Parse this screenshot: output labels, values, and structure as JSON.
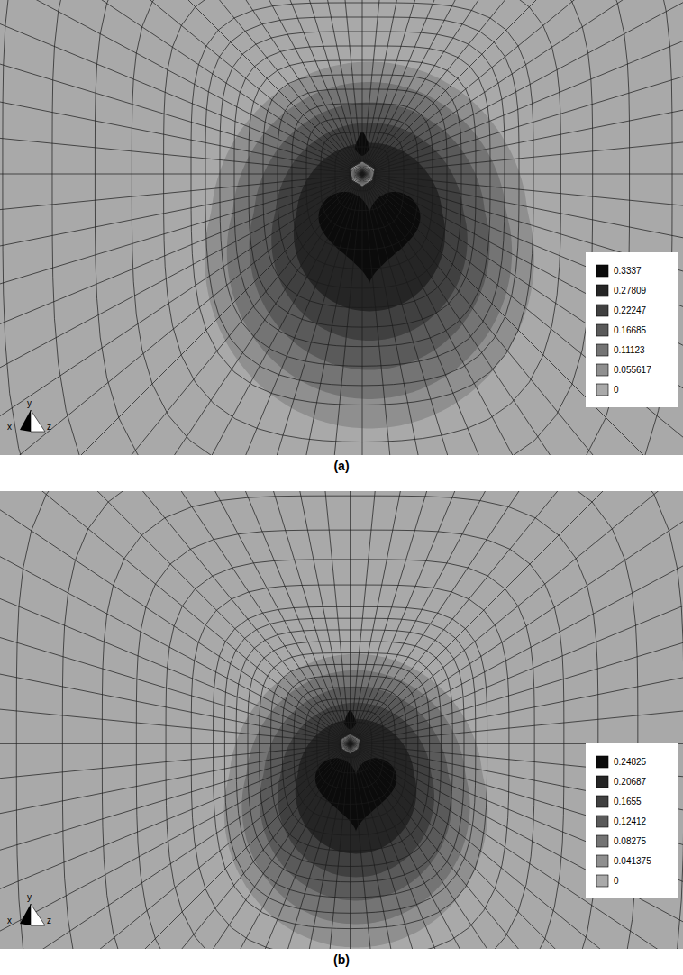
{
  "chart_data": [
    {
      "type": "contour",
      "title": "(a)",
      "axes": [
        "x",
        "y",
        "z"
      ],
      "colorbar": {
        "range": [
          0,
          0.3337
        ],
        "ticks": [
          0.3337,
          0.27809,
          0.22247,
          0.16685,
          0.11123,
          0.055617,
          0
        ]
      }
    },
    {
      "type": "contour",
      "title": "(b)",
      "axes": [
        "x",
        "y",
        "z"
      ],
      "colorbar": {
        "range": [
          0,
          0.24825
        ],
        "ticks": [
          0.24825,
          0.20687,
          0.1655,
          0.12412,
          0.08275,
          0.041375,
          0
        ]
      }
    }
  ]
}
